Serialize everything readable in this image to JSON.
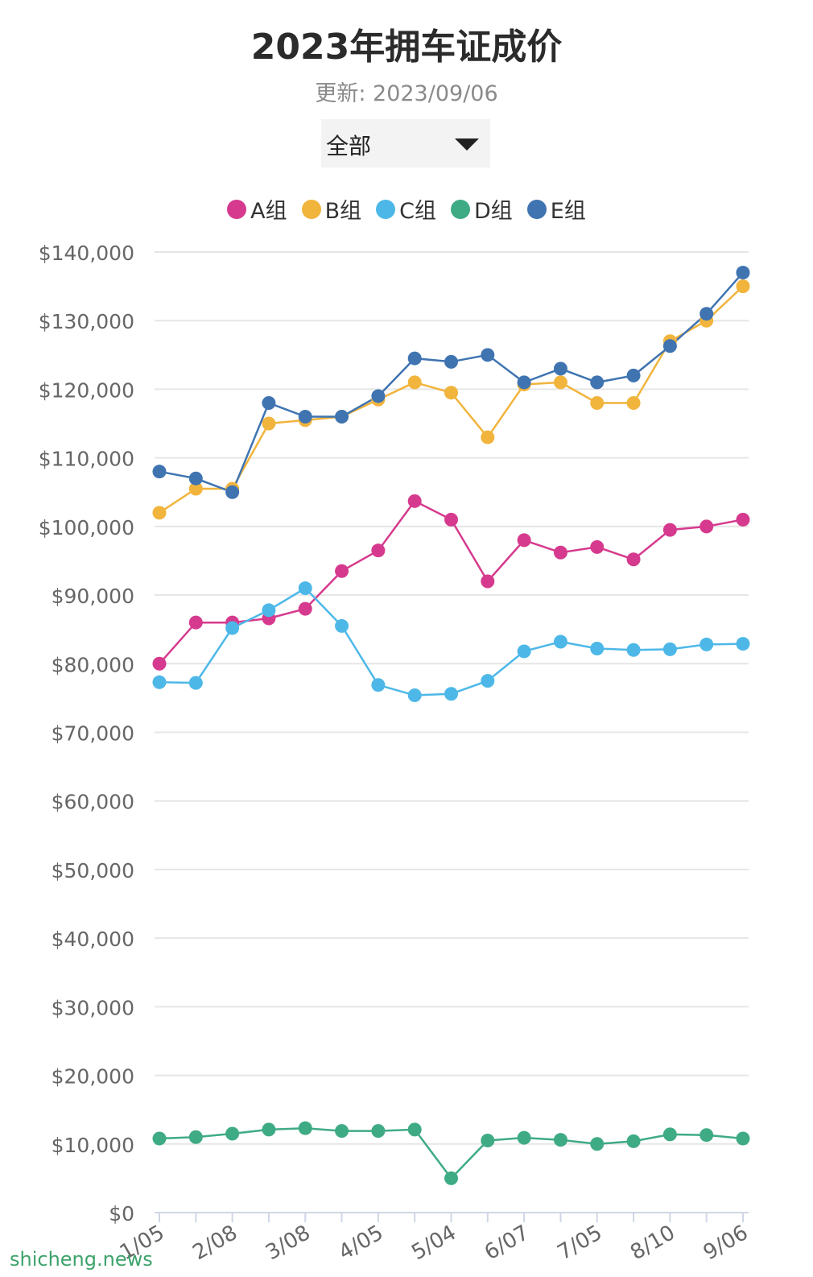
{
  "header": {
    "title": "2023年拥车证成价",
    "subtitle": "更新: 2023/09/06",
    "dropdown_value": "全部"
  },
  "watermark": "shicheng.news",
  "chart_data": {
    "type": "line",
    "title": "2023年拥车证成价",
    "subtitle": "更新: 2023/09/06",
    "xlabel": "",
    "ylabel": "",
    "ylim": [
      0,
      140000
    ],
    "yticks": [
      0,
      10000,
      20000,
      30000,
      40000,
      50000,
      60000,
      70000,
      80000,
      90000,
      100000,
      110000,
      120000,
      130000,
      140000
    ],
    "ytick_labels": [
      "$0",
      "$10,000",
      "$20,000",
      "$30,000",
      "$40,000",
      "$50,000",
      "$60,000",
      "$70,000",
      "$80,000",
      "$90,000",
      "$100,000",
      "$110,000",
      "$120,000",
      "$130,000",
      "$140,000"
    ],
    "x_tick_labels": [
      {
        "index": 0,
        "label": "1/05"
      },
      {
        "index": 2,
        "label": "2/08"
      },
      {
        "index": 4,
        "label": "3/08"
      },
      {
        "index": 6,
        "label": "4/05"
      },
      {
        "index": 8,
        "label": "5/04"
      },
      {
        "index": 10,
        "label": "6/07"
      },
      {
        "index": 12,
        "label": "7/05"
      },
      {
        "index": 14,
        "label": "8/10"
      },
      {
        "index": 16,
        "label": "9/06"
      }
    ],
    "grid": true,
    "legend_position": "top-center",
    "series": [
      {
        "name": "A组",
        "color": "#d63a8e",
        "values": [
          80000,
          86000,
          86000,
          86600,
          88000,
          93500,
          96500,
          103700,
          101000,
          92000,
          98000,
          96200,
          97000,
          95200,
          99500,
          100000,
          101000
        ]
      },
      {
        "name": "B组",
        "color": "#f1b43c",
        "values": [
          102000,
          105500,
          105500,
          115000,
          115500,
          116000,
          118500,
          121000,
          119500,
          113000,
          120700,
          121000,
          118000,
          118000,
          127000,
          130000,
          135000
        ]
      },
      {
        "name": "C组",
        "color": "#4db8e8",
        "values": [
          77300,
          77200,
          85200,
          87800,
          91000,
          85500,
          76900,
          75400,
          75600,
          77500,
          81800,
          83200,
          82200,
          82000,
          82100,
          82800,
          82900
        ]
      },
      {
        "name": "D组",
        "color": "#3fab85",
        "values": [
          10800,
          11000,
          11500,
          12100,
          12300,
          11900,
          11900,
          12100,
          5000,
          10500,
          10900,
          10600,
          10000,
          10400,
          11400,
          11300,
          10800
        ]
      },
      {
        "name": "E组",
        "color": "#3f74b1",
        "values": [
          108000,
          107000,
          105000,
          118000,
          116000,
          116000,
          119000,
          124500,
          124000,
          125000,
          121000,
          123000,
          121000,
          122000,
          126300,
          131000,
          137000
        ]
      }
    ]
  }
}
